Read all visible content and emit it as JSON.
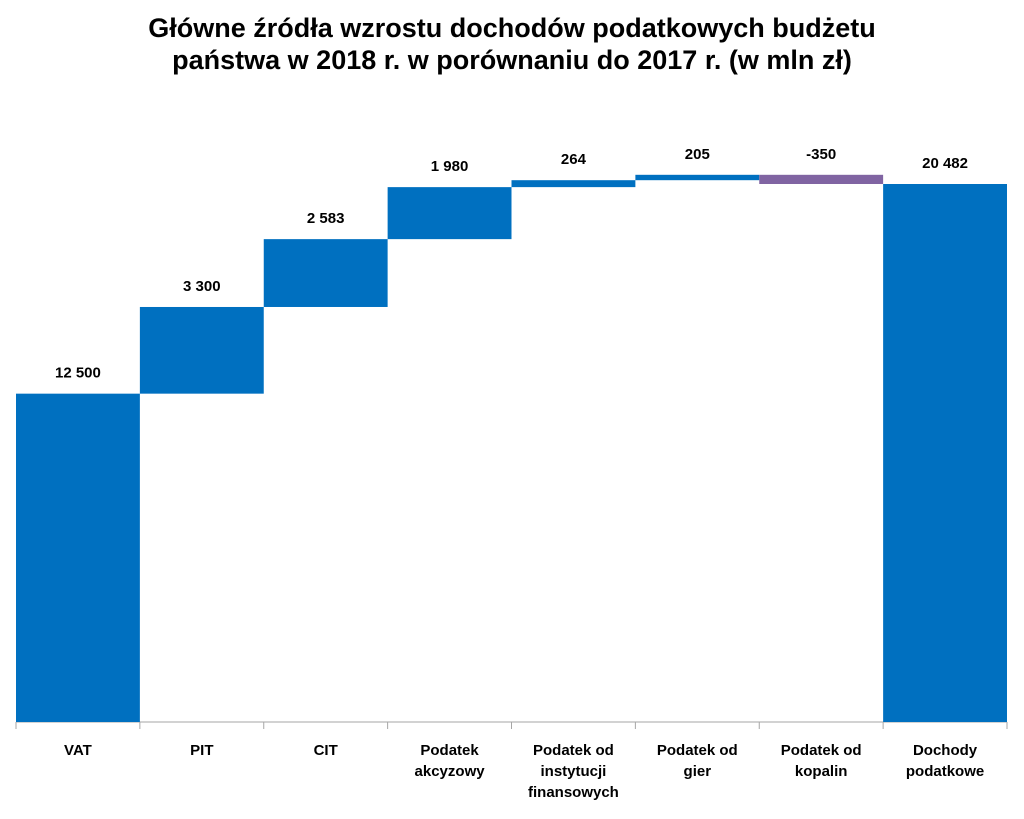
{
  "chart_data": {
    "type": "bar",
    "subtype": "waterfall",
    "title_lines": [
      "Główne źródła wzrostu dochodów podatkowych budżetu",
      "państwa w 2018 r. w porównaniu do 2017 r. (w mln zł)"
    ],
    "categories": [
      [
        "VAT"
      ],
      [
        "PIT"
      ],
      [
        "CIT"
      ],
      [
        "Podatek",
        "akcyzowy"
      ],
      [
        "Podatek od",
        "instytucji",
        "finansowych"
      ],
      [
        "Podatek od",
        "gier"
      ],
      [
        "Podatek od",
        "kopalin"
      ],
      [
        "Dochody",
        "podatkowe"
      ]
    ],
    "values": [
      12500,
      3300,
      2583,
      1980,
      264,
      205,
      -350,
      20482
    ],
    "value_labels": [
      "12 500",
      "3 300",
      "2 583",
      "1 980",
      "264",
      "205",
      "-350",
      "20 482"
    ],
    "is_total": [
      false,
      false,
      false,
      false,
      false,
      false,
      false,
      true
    ],
    "colors": {
      "increase": "#0070C0",
      "decrease": "#8064A2",
      "total": "#0070C0",
      "axis": "#A6A6A6"
    },
    "ylim": [
      0,
      21000
    ],
    "grid": false,
    "legend": "none",
    "xlabel": "",
    "ylabel": ""
  }
}
